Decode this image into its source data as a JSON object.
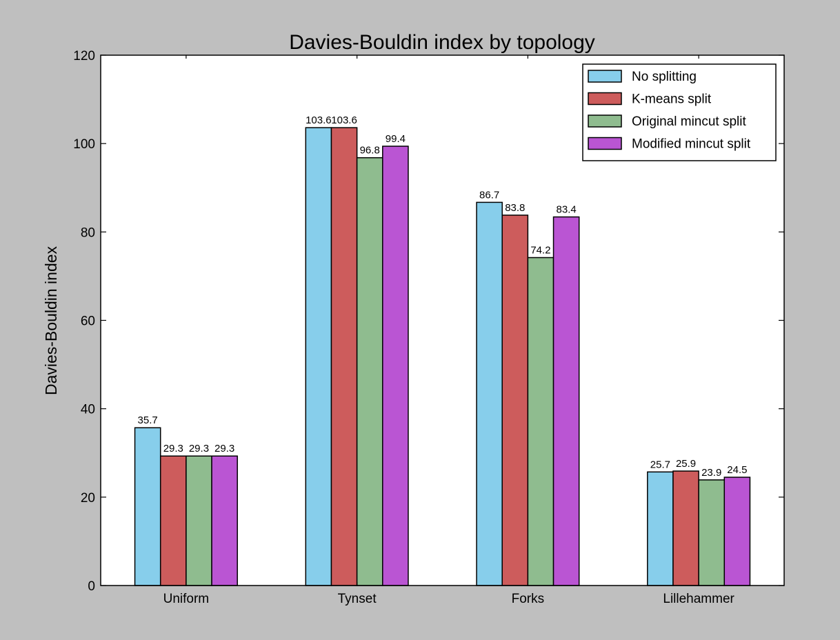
{
  "chart_data": {
    "type": "bar",
    "title": "Davies-Bouldin index by topology",
    "xlabel": "",
    "ylabel": "Davies-Bouldin index",
    "categories": [
      "Uniform",
      "Tynset",
      "Forks",
      "Lillehammer"
    ],
    "ylim": [
      0,
      120
    ],
    "yticks": [
      0,
      20,
      40,
      60,
      80,
      100,
      120
    ],
    "grid": false,
    "legend_position": "top-right",
    "series": [
      {
        "name": "No splitting",
        "color": "#87ceeb",
        "values": [
          35.7,
          103.6,
          86.7,
          25.7
        ],
        "labels": [
          "35.7",
          "103.6",
          "86.7",
          "25.7"
        ]
      },
      {
        "name": "K-means split",
        "color": "#cd5c5c",
        "values": [
          29.3,
          103.6,
          83.8,
          25.9
        ],
        "labels": [
          "29.3",
          "103.6",
          "83.8",
          "25.9"
        ]
      },
      {
        "name": "Original mincut split",
        "color": "#8fbc8f",
        "values": [
          29.3,
          96.8,
          74.2,
          23.9
        ],
        "labels": [
          "29.3",
          "96.8",
          "74.2",
          "23.9"
        ]
      },
      {
        "name": "Modified mincut split",
        "color": "#ba55d3",
        "values": [
          29.3,
          99.4,
          83.4,
          24.5
        ],
        "labels": [
          "29.3",
          "99.4",
          "83.4",
          "24.5"
        ]
      }
    ]
  }
}
